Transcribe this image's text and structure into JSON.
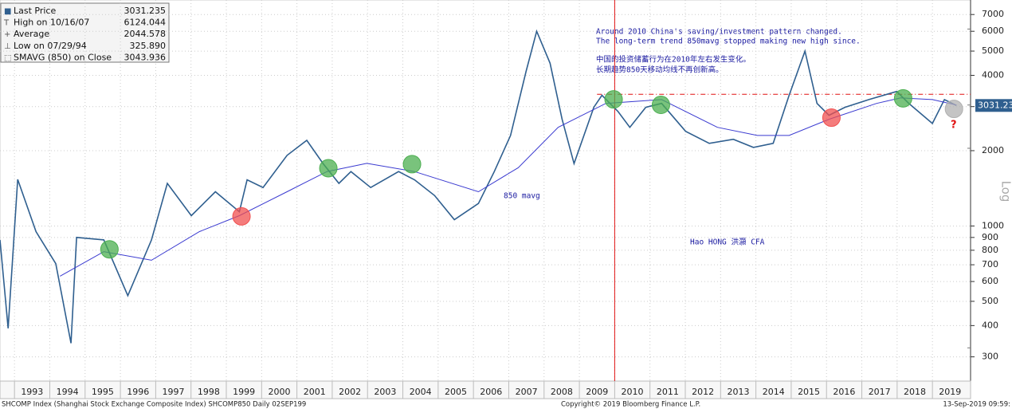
{
  "chart_data": {
    "type": "line",
    "log_y": true,
    "grid": true,
    "xlim": [
      1992.59,
      2020.08
    ],
    "ylim": [
      240,
      8000
    ],
    "xticks": [
      1993,
      1994,
      1995,
      1996,
      1997,
      1998,
      1999,
      2000,
      2001,
      2002,
      2003,
      2004,
      2005,
      2006,
      2007,
      2008,
      2009,
      2010,
      2011,
      2012,
      2013,
      2014,
      2015,
      2016,
      2017,
      2018,
      2019
    ],
    "yticks": [
      300,
      400,
      500,
      600,
      700,
      800,
      900,
      1000,
      2000,
      3000,
      4000,
      5000,
      6000,
      7000
    ],
    "y_axis_label": "Log",
    "series": [
      {
        "name": "Last Price",
        "color": "#2f5f8f",
        "x": [
          1992.59,
          1992.82,
          1993.09,
          1993.61,
          1994.17,
          1994.6,
          1994.76,
          1995.53,
          1996.21,
          1996.88,
          1997.33,
          1998.01,
          1998.69,
          1999.37,
          1999.59,
          2000.04,
          2000.72,
          2001.28,
          2001.74,
          2002.19,
          2002.53,
          2003.09,
          2003.88,
          2004.33,
          2004.9,
          2005.46,
          2006.14,
          2006.59,
          2007.05,
          2007.49,
          2007.79,
          2008.17,
          2008.51,
          2008.85,
          2009.41,
          2009.64,
          2010.09,
          2010.43,
          2010.88,
          2011.33,
          2012.01,
          2012.68,
          2013.36,
          2013.93,
          2014.49,
          2014.94,
          2015.39,
          2015.73,
          2016.07,
          2016.52,
          2017.2,
          2017.99,
          2018.33,
          2019.0,
          2019.34,
          2019.68
        ],
        "values": [
          880,
          390,
          1535,
          950,
          707,
          340,
          900,
          880,
          527,
          880,
          1480,
          1100,
          1370,
          1140,
          1530,
          1425,
          1915,
          2200,
          1777,
          1480,
          1650,
          1425,
          1650,
          1530,
          1323,
          1060,
          1230,
          1650,
          2300,
          4150,
          6000,
          4470,
          2670,
          1775,
          2980,
          3330,
          2870,
          2480,
          2980,
          3090,
          2390,
          2140,
          2220,
          2060,
          2140,
          3330,
          5000,
          3090,
          2770,
          2980,
          3200,
          3450,
          3090,
          2570,
          3200,
          3031
        ]
      },
      {
        "name": "850 mavg",
        "color": "#3a3ad0",
        "x": [
          1994.29,
          1995.53,
          1996.88,
          1998.24,
          1999.37,
          2000.72,
          2001.85,
          2002.98,
          2004.33,
          2006.14,
          2007.27,
          2008.4,
          2009.75,
          2011.33,
          2012.91,
          2014.04,
          2014.94,
          2016.07,
          2017.42,
          2018.1,
          2019.0,
          2019.68
        ],
        "values": [
          630,
          790,
          730,
          950,
          1100,
          1370,
          1650,
          1780,
          1650,
          1370,
          1710,
          2480,
          3090,
          3200,
          2480,
          2300,
          2300,
          2670,
          3090,
          3250,
          3200,
          3044
        ]
      }
    ],
    "markers": [
      {
        "x": 1995.69,
        "y": 807,
        "color": "#4caf50"
      },
      {
        "x": 2001.89,
        "y": 1702,
        "color": "#4caf50"
      },
      {
        "x": 2004.26,
        "y": 1766,
        "color": "#4caf50"
      },
      {
        "x": 2009.97,
        "y": 3206,
        "color": "#4caf50"
      },
      {
        "x": 2011.31,
        "y": 3048,
        "color": "#4caf50"
      },
      {
        "x": 2018.17,
        "y": 3236,
        "color": "#4caf50"
      },
      {
        "x": 1999.43,
        "y": 1093,
        "color": "#f05050"
      },
      {
        "x": 2016.14,
        "y": 2710,
        "color": "#f05050"
      },
      {
        "x": 2019.61,
        "y": 2937,
        "color": "#b0b0b0"
      }
    ],
    "vline": {
      "x": 2010.0,
      "color": "#e01010"
    },
    "hline": {
      "y": 3360,
      "x_start": 2009.5,
      "color": "#e01010"
    },
    "legend": {
      "labels": [
        "Last Price",
        "High on 10/16/07",
        "Average",
        "Low on 07/29/94",
        "SMAVG (850)  on Close"
      ],
      "values": [
        3031.235,
        6124.044,
        2044.578,
        325.89,
        3043.936
      ],
      "value_labels": [
        "3031.235",
        "6124.044",
        "2044.578",
        "325.890",
        "3043.936"
      ]
    },
    "annotations": [
      "Around 2010 China's saving/investment pattern changed.",
      "The long-term trend 850mavg stopped making new high since.",
      "中国的投资储蓄行为在2010年左右发生变化。",
      "长期趋势850天移动均线不再创新高。",
      "850 mavg",
      "Hao HONG 洪灝 CFA",
      "?"
    ],
    "footer": {
      "left": "SHCOMP Index (Shanghai Stock Exchange Composite Index) SHCOMP850  Daily 02SEP199",
      "center": "Copyright© 2019 Bloomberg Finance L.P.",
      "right": "13-Sep-2019 09:59:"
    }
  }
}
